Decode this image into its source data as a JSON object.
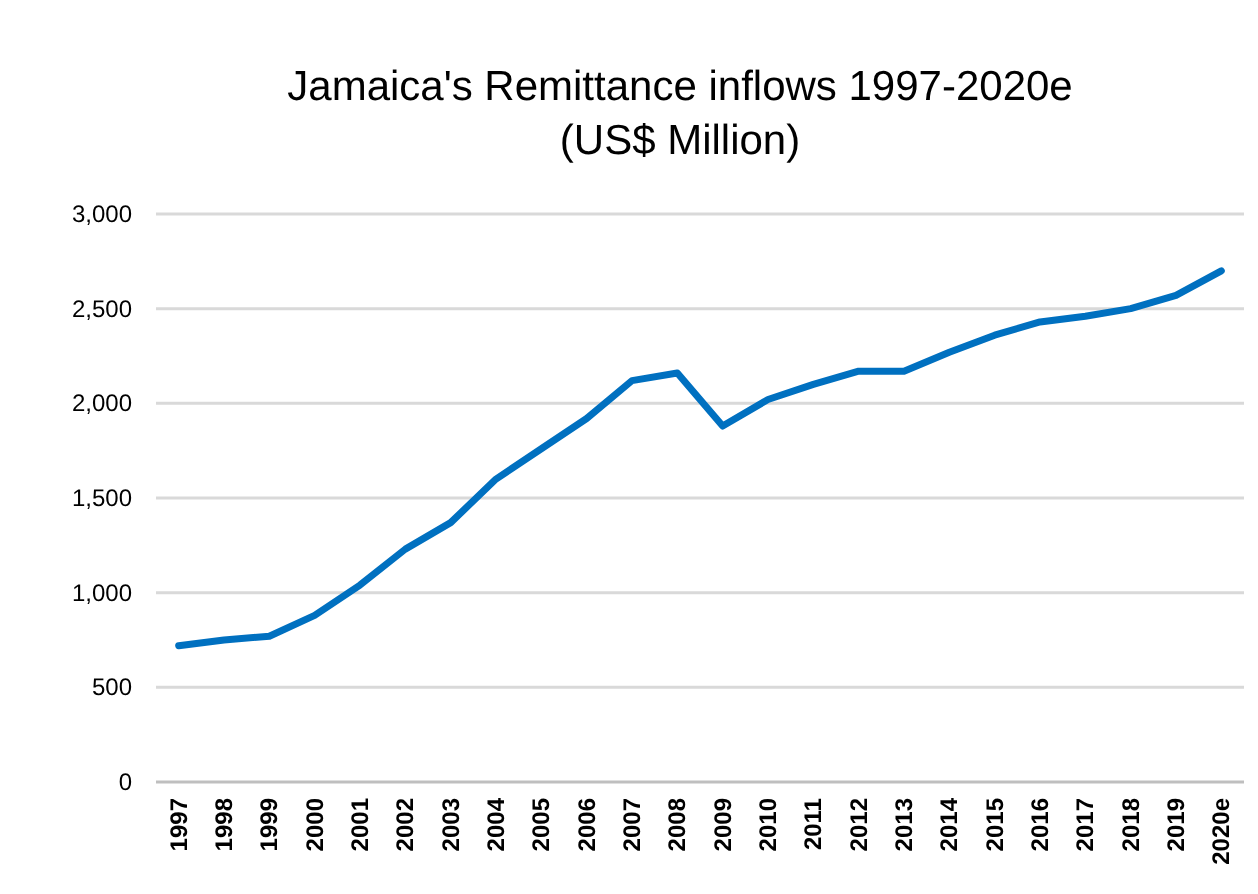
{
  "chart_data": {
    "type": "line",
    "title": "Jamaica's  Remittance inflows 1997-2020e (US$ Million)",
    "categories": [
      "1997",
      "1998",
      "1999",
      "2000",
      "2001",
      "2002",
      "2003",
      "2004",
      "2005",
      "2006",
      "2007",
      "2008",
      "2009",
      "2010",
      "2011",
      "2012",
      "2013",
      "2014",
      "2015",
      "2016",
      "2017",
      "2018",
      "2019",
      "2020e"
    ],
    "series": [
      {
        "color": "#0070c0",
        "values": [
          720,
          750,
          770,
          880,
          1040,
          1230,
          1370,
          1600,
          1760,
          1920,
          2120,
          2160,
          1880,
          2020,
          2100,
          2170,
          2170,
          2270,
          2360,
          2430,
          2460,
          2500,
          2570,
          2700
        ]
      }
    ],
    "ylim": [
      0,
      3000
    ],
    "yticks": [
      {
        "value": 0,
        "label": "0"
      },
      {
        "value": 500,
        "label": "500"
      },
      {
        "value": 1000,
        "label": "1,000"
      },
      {
        "value": 1500,
        "label": "1,500"
      },
      {
        "value": 2000,
        "label": "2,000"
      },
      {
        "value": 2500,
        "label": "2,500"
      },
      {
        "value": 3000,
        "label": "3,000"
      }
    ],
    "grid": "y",
    "marker": "none",
    "line_style": "solid"
  }
}
